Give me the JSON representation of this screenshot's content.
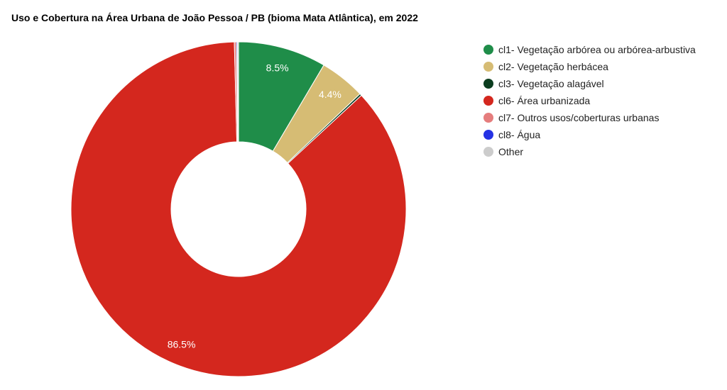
{
  "chart_data": {
    "type": "pie",
    "donut": true,
    "title": "Uso e Cobertura na Área Urbana de João Pessoa / PB (bioma Mata Atlântica), em 2022",
    "legend_position": "right",
    "slices": [
      {
        "label": "cl1- Vegetação arbórea ou arbórea-arbustiva",
        "value": 8.5,
        "color": "#1f8d49",
        "data_label": "8.5%"
      },
      {
        "label": "cl2- Vegetação herbácea",
        "value": 4.4,
        "color": "#d6bc74",
        "data_label": "4.4%"
      },
      {
        "label": "cl3- Vegetação alagável",
        "value": 0.2,
        "color": "#0b3d1f",
        "data_label": ""
      },
      {
        "label": "cl6- Área urbanizada",
        "value": 86.5,
        "color": "#d4271e",
        "data_label": "86.5%"
      },
      {
        "label": "cl7- Outros usos/coberturas urbanas",
        "value": 0.2,
        "color": "#e57d7d",
        "data_label": ""
      },
      {
        "label": "cl8- Água",
        "value": 0.1,
        "color": "#2532e4",
        "data_label": ""
      },
      {
        "label": "Other",
        "value": 0.1,
        "color": "#cccccc",
        "data_label": ""
      }
    ]
  }
}
